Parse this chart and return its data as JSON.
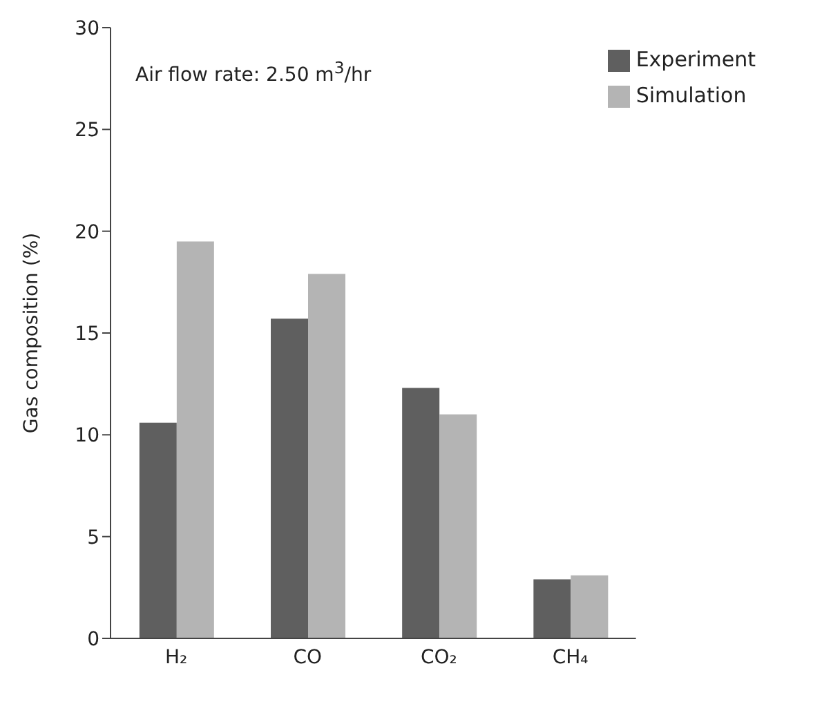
{
  "chart_data": {
    "type": "bar",
    "ylabel": "Gas composition (%)",
    "categories": [
      "H₂",
      "CO",
      "CO₂",
      "CH₄"
    ],
    "series": [
      {
        "name": "Experiment",
        "color": "#5f5f5f",
        "values": [
          10.6,
          15.7,
          12.3,
          2.9
        ]
      },
      {
        "name": "Simulation",
        "color": "#b4b4b4",
        "values": [
          19.5,
          17.9,
          11.0,
          3.1
        ]
      }
    ],
    "ylim": [
      0,
      30
    ],
    "yticks": [
      0,
      5,
      10,
      15,
      20,
      25,
      30
    ],
    "legend": "top right",
    "annotations": [
      "Air flow rate: 2.50 m$^{3}$/hr"
    ]
  }
}
